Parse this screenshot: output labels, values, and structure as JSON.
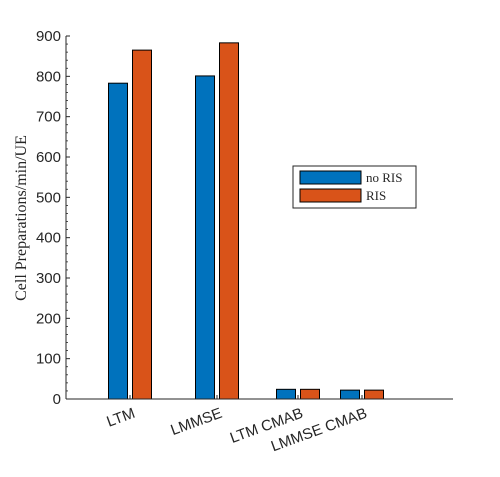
{
  "chart_data": {
    "type": "bar",
    "categories": [
      "LTM",
      "LMMSE",
      "LTM CMAB",
      "LMMSE CMAB"
    ],
    "series": [
      {
        "name": "no RIS",
        "values": [
          783,
          801,
          24,
          22
        ],
        "color": "#0072BD"
      },
      {
        "name": "RIS",
        "values": [
          865,
          883,
          24,
          22
        ],
        "color": "#D95319"
      }
    ],
    "title": "",
    "xlabel": "",
    "ylabel": "Cell Preparations/min/UE",
    "ylim": [
      0,
      900
    ],
    "yticks": [
      0,
      100,
      200,
      300,
      400,
      500,
      600,
      700,
      800,
      900
    ],
    "ytick_labels": [
      "0",
      "100",
      "200",
      "300",
      "400",
      "500",
      "600",
      "700",
      "800",
      "900"
    ],
    "grid": false,
    "legend_position": "right"
  }
}
